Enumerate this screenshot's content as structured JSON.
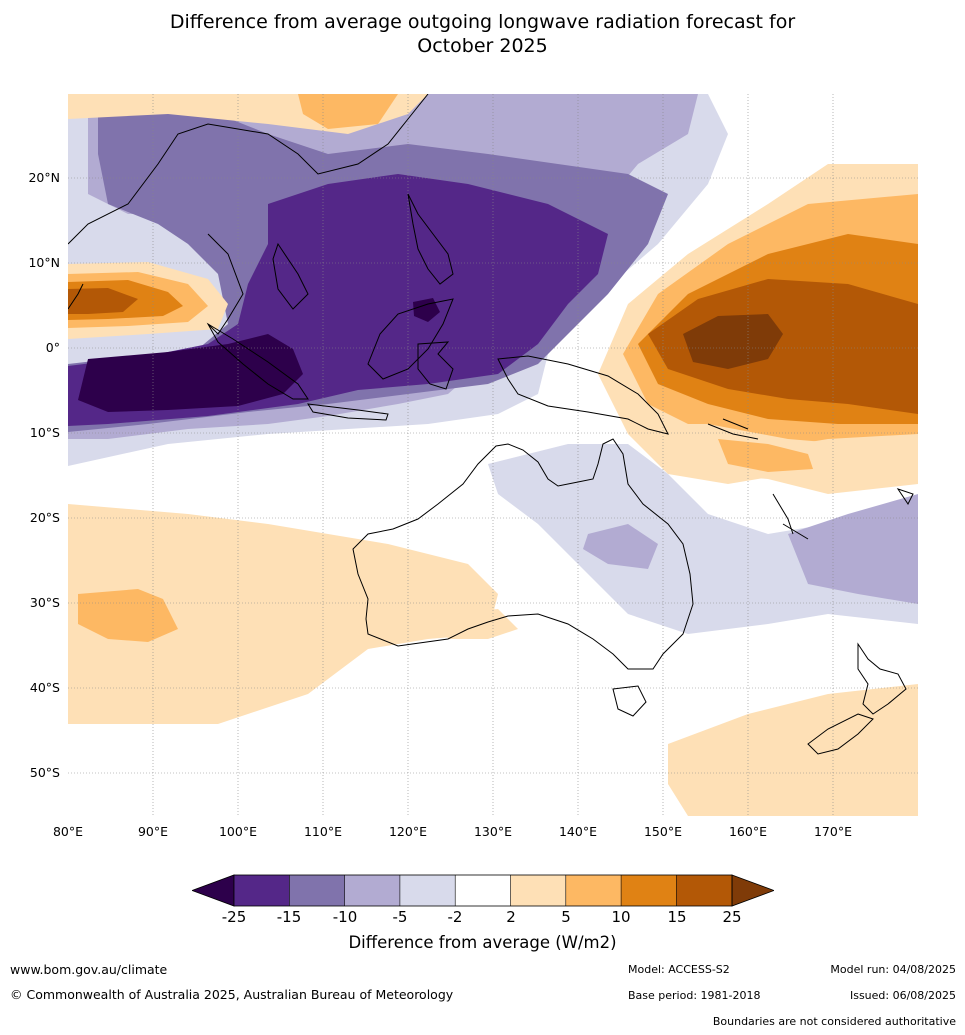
{
  "title_line1": "Difference from average outgoing longwave radiation forecast for",
  "title_line2": "October 2025",
  "map": {
    "lon_range": [
      80,
      180
    ],
    "lat_range": [
      -55,
      30
    ],
    "lat_labels": [
      "20°N",
      "10°N",
      "0°",
      "10°S",
      "20°S",
      "30°S",
      "40°S",
      "50°S"
    ],
    "lon_labels": [
      "80°E",
      "90°E",
      "100°E",
      "110°E",
      "120°E",
      "130°E",
      "140°E",
      "150°E",
      "160°E",
      "170°E"
    ]
  },
  "colorbar": {
    "ticks": [
      "-25",
      "-15",
      "-10",
      "-5",
      "-2",
      "2",
      "5",
      "10",
      "15",
      "25"
    ],
    "colors": {
      "lt_minus25": "#2d004b",
      "minus25_to_minus15": "#542788",
      "minus15_to_minus10": "#8073ac",
      "minus10_to_minus5": "#b2abd2",
      "minus5_to_minus2": "#d8daeb",
      "neutral": "#ffffff",
      "plus2_to_plus5": "#fee0b6",
      "plus5_to_plus10": "#fdb863",
      "plus10_to_plus15": "#e08214",
      "plus15_to_plus25": "#b35806",
      "gt_plus25": "#7f3b08"
    },
    "label": "Difference from average (W/m2)"
  },
  "footer": {
    "website": "www.bom.gov.au/climate",
    "copyright": "© Commonwealth of Australia 2025, Australian Bureau of Meteorology",
    "model": "Model: ACCESS-S2",
    "base_period": "Base period: 1981-2018",
    "model_run": "Model run: 04/08/2025",
    "issued": "Issued: 06/08/2025",
    "disclaimer": "Boundaries are not considered authoritative"
  }
}
